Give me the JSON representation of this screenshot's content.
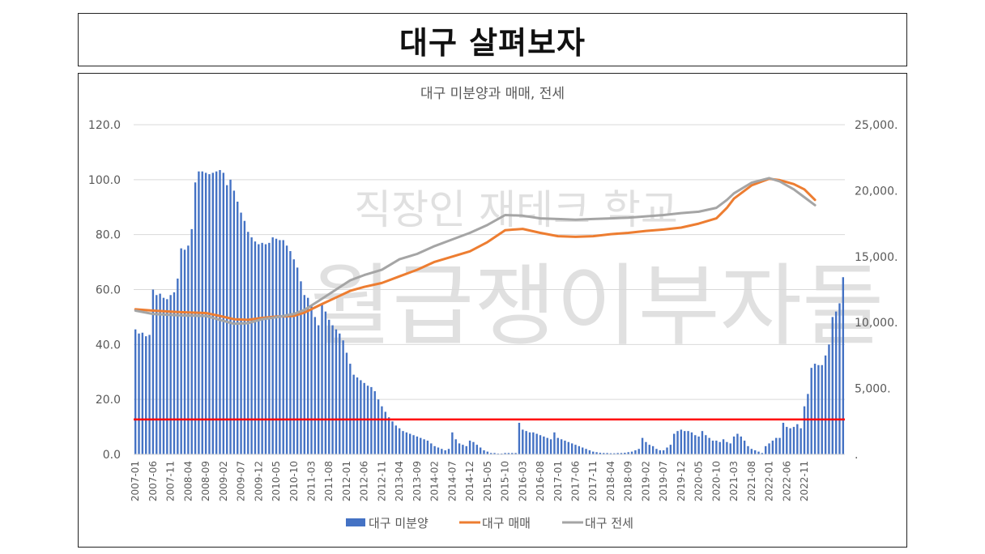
{
  "header": {
    "title": "대구 살펴보자"
  },
  "watermark": {
    "line1": "직장인 재테크 학교",
    "line2": "월급쟁이부자들"
  },
  "chart_data": {
    "type": "bar+line",
    "title": "대구 미분양과 매매, 전세",
    "xlabel": "",
    "ylabel_left": "",
    "ylabel_right": "",
    "ylim_left": [
      0,
      120
    ],
    "ylim_right": [
      0,
      25000
    ],
    "yticks_left": [
      "0.0",
      "20.0",
      "40.0",
      "60.0",
      "80.0",
      "100.0",
      "120.0"
    ],
    "yticks_right": [
      ".",
      "5,000.",
      "10,000.",
      "15,000.",
      "20,000.",
      "25,000."
    ],
    "grid": "horizontal",
    "legend_position": "bottom",
    "x_tick_labels": [
      "2007-01",
      "2007-06",
      "2007-11",
      "2008-04",
      "2008-09",
      "2009-02",
      "2009-07",
      "2009-12",
      "2010-05",
      "2010-10",
      "2011-03",
      "2011-08",
      "2012-01",
      "2012-06",
      "2012-11",
      "2013-04",
      "2013-09",
      "2014-02",
      "2014-07",
      "2014-12",
      "2015-05",
      "2015-10",
      "2016-03",
      "2016-08",
      "2017-01",
      "2017-06",
      "2017-11",
      "2018-04",
      "2018-09",
      "2019-02",
      "2019-07",
      "2019-12",
      "2020-05",
      "2020-10",
      "2021-03",
      "2021-08",
      "2022-01",
      "2022-06",
      "2022-11"
    ],
    "threshold": {
      "value": 12.7,
      "axis": "left",
      "color": "#ff0000"
    },
    "bar_series": {
      "name": "대구 미분양",
      "axis": "left",
      "color": "#4472c4",
      "monthly_values": [
        45.5,
        44,
        44.3,
        43,
        43.5,
        60,
        58,
        58.5,
        57,
        56.5,
        58,
        59,
        64,
        75,
        74.5,
        76,
        82,
        99,
        103,
        103,
        102.5,
        102,
        102.5,
        103,
        103.5,
        102.5,
        98,
        100,
        96,
        92,
        88,
        85,
        81,
        79,
        77.5,
        76.5,
        77,
        76.5,
        77,
        79,
        78.5,
        78,
        78,
        76,
        74,
        71,
        68,
        63,
        58,
        57,
        54,
        50,
        47,
        55,
        52,
        49,
        47,
        45.5,
        44,
        41.5,
        37,
        33,
        29,
        28,
        27,
        26,
        25,
        24.5,
        23,
        20,
        17.5,
        15.5,
        13.5,
        12,
        10.5,
        9.5,
        8.5,
        8,
        7.5,
        7,
        6.5,
        6,
        5.5,
        5,
        4,
        3,
        2.5,
        2,
        1.5,
        2,
        8,
        5.5,
        4,
        3.5,
        3,
        5,
        4.5,
        3.5,
        2.5,
        1.5,
        1,
        0.5,
        0.5,
        0.3,
        0.3,
        0.5,
        0.5,
        0.5,
        0.5,
        11.5,
        9,
        8.5,
        8,
        8,
        7.5,
        7,
        6.5,
        6,
        5.5,
        8,
        6,
        5.5,
        5,
        4.5,
        4,
        3.5,
        3,
        2.5,
        2,
        1.5,
        1,
        0.8,
        0.6,
        0.5,
        0.5,
        0.4,
        0.4,
        0.5,
        0.5,
        0.6,
        0.8,
        1,
        1.5,
        2,
        6,
        4.5,
        3.5,
        3,
        2,
        1.5,
        1.5,
        2.5,
        3.5,
        7.5,
        8.5,
        9,
        8.5,
        8.5,
        8,
        7,
        6.5,
        8.5,
        7,
        6,
        5,
        5,
        4.5,
        5.5,
        4.5,
        4,
        6.5,
        7.5,
        6.5,
        5,
        3,
        2,
        1.5,
        1,
        0.5,
        3,
        4,
        5,
        6,
        6,
        11.5,
        10,
        9.5,
        10,
        11,
        9.5,
        17.5,
        22,
        31.5,
        33,
        32.5,
        32.5,
        36,
        40,
        50,
        52,
        55,
        64.5
      ]
    },
    "line_series": [
      {
        "name": "대구 매매",
        "axis": "right",
        "color": "#ed7d31",
        "points": [
          [
            "2007-01",
            11000
          ],
          [
            "2007-06",
            10900
          ],
          [
            "2008-01",
            10800
          ],
          [
            "2008-09",
            10720
          ],
          [
            "2009-01",
            10500
          ],
          [
            "2009-05",
            10250
          ],
          [
            "2009-09",
            10200
          ],
          [
            "2010-01",
            10350
          ],
          [
            "2010-05",
            10450
          ],
          [
            "2010-10",
            10500
          ],
          [
            "2011-01",
            10750
          ],
          [
            "2011-06",
            11400
          ],
          [
            "2011-10",
            11900
          ],
          [
            "2012-02",
            12400
          ],
          [
            "2012-06",
            12700
          ],
          [
            "2012-11",
            13000
          ],
          [
            "2013-04",
            13500
          ],
          [
            "2013-09",
            14000
          ],
          [
            "2014-02",
            14600
          ],
          [
            "2014-07",
            15000
          ],
          [
            "2014-12",
            15400
          ],
          [
            "2015-05",
            16100
          ],
          [
            "2015-10",
            17000
          ],
          [
            "2016-03",
            17100
          ],
          [
            "2016-08",
            16800
          ],
          [
            "2017-01",
            16550
          ],
          [
            "2017-06",
            16500
          ],
          [
            "2017-11",
            16550
          ],
          [
            "2018-04",
            16700
          ],
          [
            "2018-09",
            16800
          ],
          [
            "2019-02",
            16950
          ],
          [
            "2019-07",
            17050
          ],
          [
            "2019-12",
            17200
          ],
          [
            "2020-05",
            17500
          ],
          [
            "2020-10",
            17900
          ],
          [
            "2021-01",
            18700
          ],
          [
            "2021-03",
            19400
          ],
          [
            "2021-08",
            20400
          ],
          [
            "2022-01",
            20900
          ],
          [
            "2022-04",
            20800
          ],
          [
            "2022-08",
            20500
          ],
          [
            "2022-11",
            20100
          ],
          [
            "2023-02",
            19300
          ]
        ]
      },
      {
        "name": "대구 전세",
        "axis": "right",
        "color": "#a5a5a5",
        "points": [
          [
            "2007-01",
            10900
          ],
          [
            "2007-06",
            10650
          ],
          [
            "2008-01",
            10550
          ],
          [
            "2008-09",
            10500
          ],
          [
            "2009-01",
            10200
          ],
          [
            "2009-05",
            9900
          ],
          [
            "2009-09",
            9950
          ],
          [
            "2010-01",
            10250
          ],
          [
            "2010-05",
            10400
          ],
          [
            "2010-10",
            10650
          ],
          [
            "2011-01",
            10950
          ],
          [
            "2011-06",
            11800
          ],
          [
            "2011-10",
            12500
          ],
          [
            "2012-02",
            13200
          ],
          [
            "2012-06",
            13600
          ],
          [
            "2012-11",
            14000
          ],
          [
            "2013-04",
            14800
          ],
          [
            "2013-09",
            15200
          ],
          [
            "2014-02",
            15800
          ],
          [
            "2014-07",
            16300
          ],
          [
            "2014-12",
            16800
          ],
          [
            "2015-05",
            17400
          ],
          [
            "2015-10",
            18150
          ],
          [
            "2016-03",
            18100
          ],
          [
            "2016-08",
            17900
          ],
          [
            "2017-01",
            17850
          ],
          [
            "2017-06",
            17800
          ],
          [
            "2017-11",
            17850
          ],
          [
            "2018-04",
            17900
          ],
          [
            "2018-09",
            17950
          ],
          [
            "2019-02",
            18050
          ],
          [
            "2019-07",
            18150
          ],
          [
            "2019-12",
            18300
          ],
          [
            "2020-05",
            18400
          ],
          [
            "2020-10",
            18700
          ],
          [
            "2021-01",
            19300
          ],
          [
            "2021-03",
            19800
          ],
          [
            "2021-08",
            20600
          ],
          [
            "2022-01",
            20950
          ],
          [
            "2022-04",
            20700
          ],
          [
            "2022-08",
            20100
          ],
          [
            "2022-11",
            19500
          ],
          [
            "2023-02",
            18900
          ]
        ]
      }
    ]
  }
}
